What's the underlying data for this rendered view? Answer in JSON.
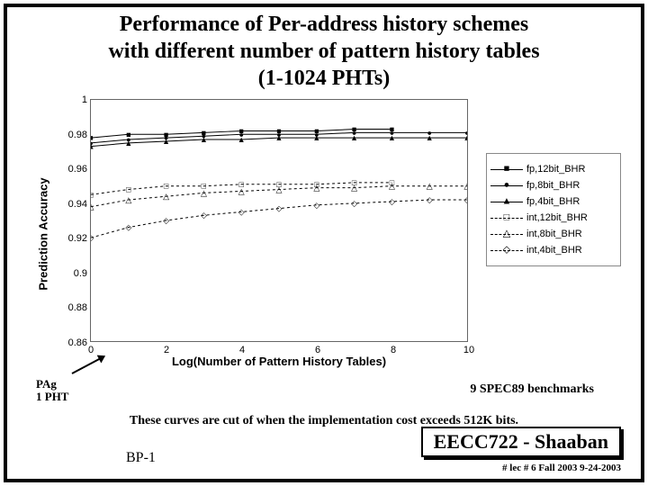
{
  "title_line1": "Performance of Per-address history schemes",
  "title_line2": "with different number of pattern history tables",
  "title_line3": "(1-1024 PHTs)",
  "chart": {
    "type": "line",
    "y_label": "Prediction Accuracy",
    "x_label": "Log(Number of Pattern History Tables)",
    "ylim": [
      0.86,
      1.0
    ],
    "xlim": [
      0,
      10
    ],
    "yticks": [
      0.86,
      0.88,
      0.9,
      0.92,
      0.94,
      0.96,
      0.98,
      1.0
    ],
    "xticks": [
      0,
      2,
      4,
      6,
      8,
      10
    ],
    "background_color": "#ffffff",
    "border_color": "#666666",
    "label_fontsize": 13,
    "tick_fontsize": 11,
    "series": [
      {
        "label": "fp,12bit_BHR",
        "marker": "■",
        "style": "solid",
        "x": [
          0,
          1,
          2,
          3,
          4,
          5,
          6,
          7,
          8
        ],
        "y": [
          0.978,
          0.98,
          0.98,
          0.981,
          0.982,
          0.982,
          0.982,
          0.983,
          0.983
        ]
      },
      {
        "label": "fp,8bit_BHR",
        "marker": "●",
        "style": "solid",
        "x": [
          0,
          1,
          2,
          3,
          4,
          5,
          6,
          7,
          8,
          9,
          10
        ],
        "y": [
          0.975,
          0.977,
          0.978,
          0.979,
          0.98,
          0.98,
          0.98,
          0.981,
          0.981,
          0.981,
          0.981
        ]
      },
      {
        "label": "fp,4bit_BHR",
        "marker": "▲",
        "style": "solid",
        "x": [
          0,
          1,
          2,
          3,
          4,
          5,
          6,
          7,
          8,
          9,
          10
        ],
        "y": [
          0.973,
          0.975,
          0.976,
          0.977,
          0.977,
          0.978,
          0.978,
          0.978,
          0.978,
          0.978,
          0.978
        ]
      },
      {
        "label": "int,12bit_BHR",
        "marker": "□",
        "style": "dashed",
        "x": [
          0,
          1,
          2,
          3,
          4,
          5,
          6,
          7,
          8
        ],
        "y": [
          0.945,
          0.948,
          0.95,
          0.95,
          0.951,
          0.951,
          0.951,
          0.952,
          0.952
        ]
      },
      {
        "label": "int,8bit_BHR",
        "marker": "△",
        "style": "dashed",
        "x": [
          0,
          1,
          2,
          3,
          4,
          5,
          6,
          7,
          8,
          9,
          10
        ],
        "y": [
          0.938,
          0.942,
          0.944,
          0.946,
          0.947,
          0.948,
          0.949,
          0.949,
          0.95,
          0.95,
          0.95
        ]
      },
      {
        "label": "int,4bit_BHR",
        "marker": "◇",
        "style": "dashed",
        "x": [
          0,
          1,
          2,
          3,
          4,
          5,
          6,
          7,
          8,
          9,
          10
        ],
        "y": [
          0.92,
          0.926,
          0.93,
          0.933,
          0.935,
          0.937,
          0.939,
          0.94,
          0.941,
          0.942,
          0.942
        ]
      }
    ]
  },
  "pag_label_line1": "PAg",
  "pag_label_line2": "1 PHT",
  "spec_label": "9 SPEC89 benchmarks",
  "caption": "These curves are cut of when the implementation cost exceeds 512K bits.",
  "footer_box": "EECC722 - Shaaban",
  "footer_sub": "#  lec # 6   Fall 2003   9-24-2003",
  "bp_label": "BP-1"
}
